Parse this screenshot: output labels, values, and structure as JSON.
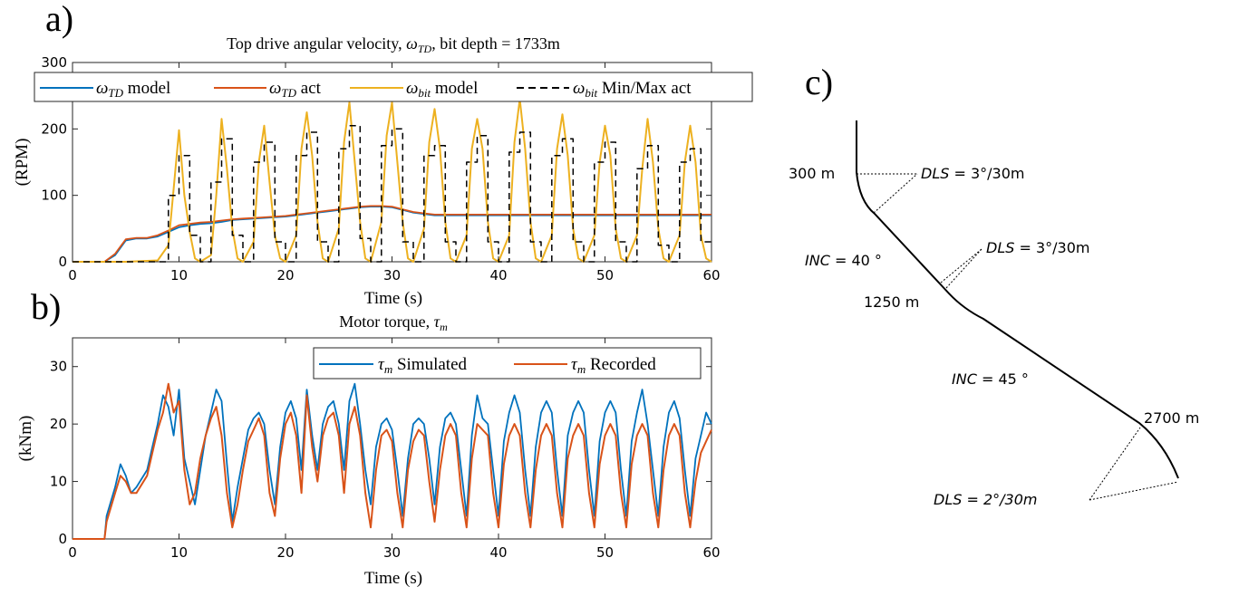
{
  "panel_labels": {
    "a": "a)",
    "b": "b)",
    "c": "c)"
  },
  "chart_data": [
    {
      "id": "a",
      "type": "line",
      "title": "Top drive angular velocity, ωTD, bit depth = 1733m",
      "xlabel": "Time (s)",
      "ylabel": "(RPM)",
      "xlim": [
        0,
        60
      ],
      "ylim": [
        0,
        300
      ],
      "xticks": [
        0,
        10,
        20,
        30,
        40,
        50,
        60
      ],
      "yticks": [
        0,
        100,
        200,
        300
      ],
      "legend_position": "top",
      "series": [
        {
          "name": "ωTD model",
          "color": "#0072BD",
          "x": [
            0,
            3,
            4,
            5,
            6,
            7,
            8,
            9,
            10,
            11,
            12,
            13,
            14,
            15,
            16,
            17,
            18,
            19,
            20,
            21,
            22,
            23,
            24,
            25,
            26,
            27,
            28,
            29,
            30,
            31,
            32,
            33,
            34,
            36,
            38,
            40,
            44,
            48,
            52,
            56,
            60
          ],
          "y": [
            0,
            0,
            10,
            32,
            35,
            35,
            38,
            45,
            52,
            55,
            57,
            58,
            60,
            63,
            64,
            65,
            66,
            67,
            68,
            70,
            72,
            74,
            76,
            78,
            80,
            82,
            83,
            83,
            82,
            78,
            74,
            72,
            70,
            70,
            70,
            70,
            70,
            70,
            70,
            70,
            70
          ]
        },
        {
          "name": "ωTD act",
          "color": "#D95319",
          "x": [
            0,
            3,
            4,
            5,
            6,
            7,
            8,
            9,
            10,
            11,
            12,
            13,
            14,
            15,
            16,
            17,
            18,
            19,
            20,
            21,
            22,
            23,
            24,
            25,
            26,
            27,
            28,
            29,
            30,
            31,
            32,
            33,
            34,
            36,
            38,
            40,
            44,
            48,
            52,
            56,
            60
          ],
          "y": [
            0,
            0,
            12,
            34,
            36,
            36,
            40,
            47,
            55,
            57,
            59,
            60,
            62,
            64,
            65,
            66,
            67,
            68,
            69,
            71,
            73,
            75,
            77,
            79,
            81,
            83,
            84,
            84,
            83,
            79,
            75,
            73,
            71,
            71,
            71,
            71,
            71,
            71,
            71,
            71,
            71
          ]
        },
        {
          "name": "ωbit model",
          "color": "#EDB120",
          "x": [
            0,
            5,
            8,
            9,
            9.5,
            10,
            10.5,
            11,
            11.5,
            12,
            13,
            13.5,
            14,
            14.5,
            15,
            15.5,
            16,
            17,
            17.5,
            18,
            18.5,
            19,
            19.5,
            20,
            21,
            21.5,
            22,
            22.5,
            23,
            23.5,
            24,
            25,
            25.5,
            26,
            26.5,
            27,
            27.5,
            28,
            29,
            29.5,
            30,
            30.5,
            31,
            31.5,
            32,
            33,
            33.5,
            34,
            34.5,
            35,
            35.5,
            36,
            37,
            37.5,
            38,
            38.5,
            39,
            39.5,
            40,
            41,
            41.5,
            42,
            42.5,
            43,
            43.5,
            44,
            45,
            45.5,
            46,
            46.5,
            47,
            47.5,
            48,
            49,
            49.5,
            50,
            50.5,
            51,
            51.5,
            52,
            53,
            53.5,
            54,
            54.5,
            55,
            55.5,
            56,
            57,
            57.5,
            58,
            58.5,
            59,
            59.5,
            60
          ],
          "y": [
            0,
            0,
            2,
            25,
            110,
            198,
            100,
            45,
            5,
            0,
            10,
            100,
            215,
            140,
            50,
            5,
            0,
            30,
            150,
            205,
            120,
            40,
            5,
            0,
            40,
            170,
            225,
            160,
            60,
            5,
            0,
            50,
            180,
            240,
            150,
            60,
            5,
            0,
            60,
            190,
            240,
            150,
            60,
            5,
            0,
            50,
            180,
            230,
            170,
            60,
            5,
            0,
            40,
            170,
            215,
            170,
            60,
            5,
            0,
            40,
            180,
            245,
            170,
            60,
            5,
            0,
            40,
            170,
            222,
            160,
            50,
            5,
            0,
            40,
            150,
            205,
            160,
            50,
            5,
            0,
            40,
            140,
            215,
            150,
            50,
            5,
            0,
            40,
            150,
            205,
            150,
            40,
            5,
            0
          ]
        },
        {
          "name": "ωbit Min/Max act",
          "color": "#000000",
          "x": [
            0,
            9,
            9,
            10,
            10,
            11,
            11,
            12,
            12,
            13,
            13,
            14,
            14,
            15,
            15,
            16,
            16,
            17,
            17,
            18,
            18,
            19,
            19,
            20,
            20,
            21,
            21,
            22,
            22,
            23,
            23,
            24,
            24,
            25,
            25,
            26,
            26,
            27,
            27,
            28,
            28,
            29,
            29,
            30,
            30,
            31,
            31,
            32,
            32,
            33,
            33,
            34,
            34,
            35,
            35,
            36,
            36,
            37,
            37,
            38,
            38,
            39,
            39,
            40,
            40,
            41,
            41,
            42,
            42,
            43,
            43,
            44,
            44,
            45,
            45,
            46,
            46,
            47,
            47,
            48,
            48,
            49,
            49,
            50,
            50,
            51,
            51,
            52,
            52,
            53,
            53,
            54,
            54,
            55,
            55,
            56,
            56,
            57,
            57,
            58,
            58,
            59,
            59,
            60
          ],
          "y": [
            0,
            0,
            100,
            100,
            160,
            160,
            40,
            40,
            0,
            0,
            120,
            120,
            185,
            185,
            40,
            40,
            0,
            0,
            150,
            150,
            180,
            180,
            30,
            30,
            0,
            0,
            160,
            160,
            195,
            195,
            30,
            30,
            0,
            0,
            170,
            170,
            205,
            205,
            35,
            35,
            0,
            0,
            175,
            175,
            200,
            200,
            30,
            30,
            0,
            0,
            160,
            160,
            175,
            175,
            30,
            30,
            0,
            0,
            150,
            150,
            190,
            190,
            30,
            30,
            0,
            0,
            165,
            165,
            195,
            195,
            30,
            30,
            0,
            0,
            160,
            160,
            185,
            185,
            30,
            30,
            0,
            0,
            150,
            150,
            180,
            180,
            30,
            30,
            0,
            0,
            140,
            140,
            175,
            175,
            25,
            25,
            0,
            0,
            150,
            150,
            170,
            170,
            30,
            30
          ]
        }
      ]
    },
    {
      "id": "b",
      "type": "line",
      "title": "Motor torque, τm",
      "xlabel": "Time (s)",
      "ylabel": "(kNm)",
      "xlim": [
        0,
        60
      ],
      "ylim": [
        0,
        35
      ],
      "xticks": [
        0,
        10,
        20,
        30,
        40,
        50,
        60
      ],
      "yticks": [
        0,
        10,
        20,
        30
      ],
      "legend_position": "top-right",
      "series": [
        {
          "name": "τm Simulated",
          "color": "#0072BD",
          "x": [
            0,
            3,
            3.2,
            4,
            4.5,
            5,
            5.5,
            6,
            7,
            7.5,
            8,
            8.5,
            9,
            9.5,
            10,
            10.5,
            11,
            11.5,
            12,
            12.5,
            13,
            13.5,
            14,
            14.5,
            15,
            15.5,
            16,
            16.5,
            17,
            17.5,
            18,
            18.5,
            19,
            19.5,
            20,
            20.5,
            21,
            21.5,
            22,
            22.5,
            23,
            23.5,
            24,
            24.5,
            25,
            25.5,
            26,
            26.5,
            27,
            27.5,
            28,
            28.5,
            29,
            29.5,
            30,
            30.5,
            31,
            31.5,
            32,
            32.5,
            33,
            33.5,
            34,
            34.5,
            35,
            35.5,
            36,
            36.5,
            37,
            37.5,
            38,
            38.5,
            39,
            39.5,
            40,
            40.5,
            41,
            41.5,
            42,
            42.5,
            43,
            43.5,
            44,
            44.5,
            45,
            45.5,
            46,
            46.5,
            47,
            47.5,
            48,
            48.5,
            49,
            49.5,
            50,
            50.5,
            51,
            51.5,
            52,
            52.5,
            53,
            53.5,
            54,
            54.5,
            55,
            55.5,
            56,
            56.5,
            57,
            57.5,
            58,
            58.5,
            59,
            59.5,
            60
          ],
          "y": [
            0,
            0,
            4,
            9,
            13,
            11,
            8,
            9,
            12,
            16,
            20,
            25,
            23,
            18,
            26,
            14,
            10,
            6,
            12,
            18,
            22,
            26,
            24,
            13,
            3,
            9,
            14,
            19,
            21,
            22,
            20,
            12,
            6,
            16,
            22,
            24,
            21,
            12,
            26,
            18,
            12,
            20,
            23,
            24,
            20,
            12,
            24,
            27,
            20,
            12,
            6,
            16,
            20,
            21,
            19,
            12,
            4,
            14,
            20,
            21,
            20,
            14,
            6,
            16,
            21,
            22,
            20,
            12,
            4,
            18,
            25,
            21,
            20,
            12,
            4,
            17,
            22,
            25,
            22,
            12,
            4,
            16,
            22,
            24,
            22,
            12,
            4,
            18,
            22,
            24,
            22,
            12,
            4,
            17,
            22,
            24,
            22,
            12,
            4,
            17,
            22,
            26,
            20,
            12,
            4,
            16,
            22,
            24,
            21,
            12,
            4,
            14,
            18,
            22,
            20
          ]
        },
        {
          "name": "τm Recorded",
          "color": "#D95319",
          "x": [
            0,
            3,
            3.2,
            4,
            4.5,
            5,
            5.5,
            6,
            7,
            7.5,
            8,
            8.5,
            9,
            9.5,
            10,
            10.5,
            11,
            11.5,
            12,
            12.5,
            13,
            13.5,
            14,
            14.5,
            15,
            15.5,
            16,
            16.5,
            17,
            17.5,
            18,
            18.5,
            19,
            19.5,
            20,
            20.5,
            21,
            21.5,
            22,
            22.5,
            23,
            23.5,
            24,
            24.5,
            25,
            25.5,
            26,
            26.5,
            27,
            27.5,
            28,
            28.5,
            29,
            29.5,
            30,
            30.5,
            31,
            31.5,
            32,
            32.5,
            33,
            33.5,
            34,
            34.5,
            35,
            35.5,
            36,
            36.5,
            37,
            37.5,
            38,
            38.5,
            39,
            39.5,
            40,
            40.5,
            41,
            41.5,
            42,
            42.5,
            43,
            43.5,
            44,
            44.5,
            45,
            45.5,
            46,
            46.5,
            47,
            47.5,
            48,
            48.5,
            49,
            49.5,
            50,
            50.5,
            51,
            51.5,
            52,
            52.5,
            53,
            53.5,
            54,
            54.5,
            55,
            55.5,
            56,
            56.5,
            57,
            57.5,
            58,
            58.5,
            59,
            59.5,
            60
          ],
          "y": [
            0,
            0,
            3,
            8,
            11,
            10,
            8,
            8,
            11,
            15,
            19,
            22,
            27,
            22,
            24,
            12,
            6,
            8,
            14,
            18,
            21,
            23,
            18,
            8,
            2,
            6,
            12,
            17,
            19,
            21,
            18,
            8,
            4,
            14,
            20,
            22,
            18,
            8,
            25,
            16,
            10,
            18,
            21,
            22,
            18,
            8,
            20,
            23,
            18,
            8,
            2,
            12,
            18,
            19,
            17,
            8,
            2,
            12,
            17,
            19,
            18,
            10,
            3,
            12,
            18,
            20,
            18,
            8,
            2,
            14,
            20,
            19,
            18,
            8,
            2,
            13,
            18,
            20,
            18,
            8,
            2,
            12,
            18,
            20,
            18,
            8,
            2,
            14,
            18,
            20,
            18,
            8,
            2,
            13,
            18,
            20,
            18,
            8,
            2,
            13,
            18,
            20,
            18,
            8,
            2,
            12,
            18,
            20,
            18,
            8,
            2,
            10,
            15,
            17,
            19
          ]
        }
      ]
    }
  ],
  "well": {
    "labels": {
      "kop_depth": "300 m",
      "dls1_italic": "DLS",
      "dls1_rest": " = 3°/30m",
      "inc1_italic": "INC",
      "inc1_rest": " = 40 °",
      "dls2_italic": "DLS",
      "dls2_rest": " = 3°/30m",
      "depth2": "1250 m",
      "inc2_italic": "INC",
      "inc2_rest": " = 45 °",
      "depth3": "2700 m",
      "dls3": "DLS = 2°/30m"
    }
  }
}
